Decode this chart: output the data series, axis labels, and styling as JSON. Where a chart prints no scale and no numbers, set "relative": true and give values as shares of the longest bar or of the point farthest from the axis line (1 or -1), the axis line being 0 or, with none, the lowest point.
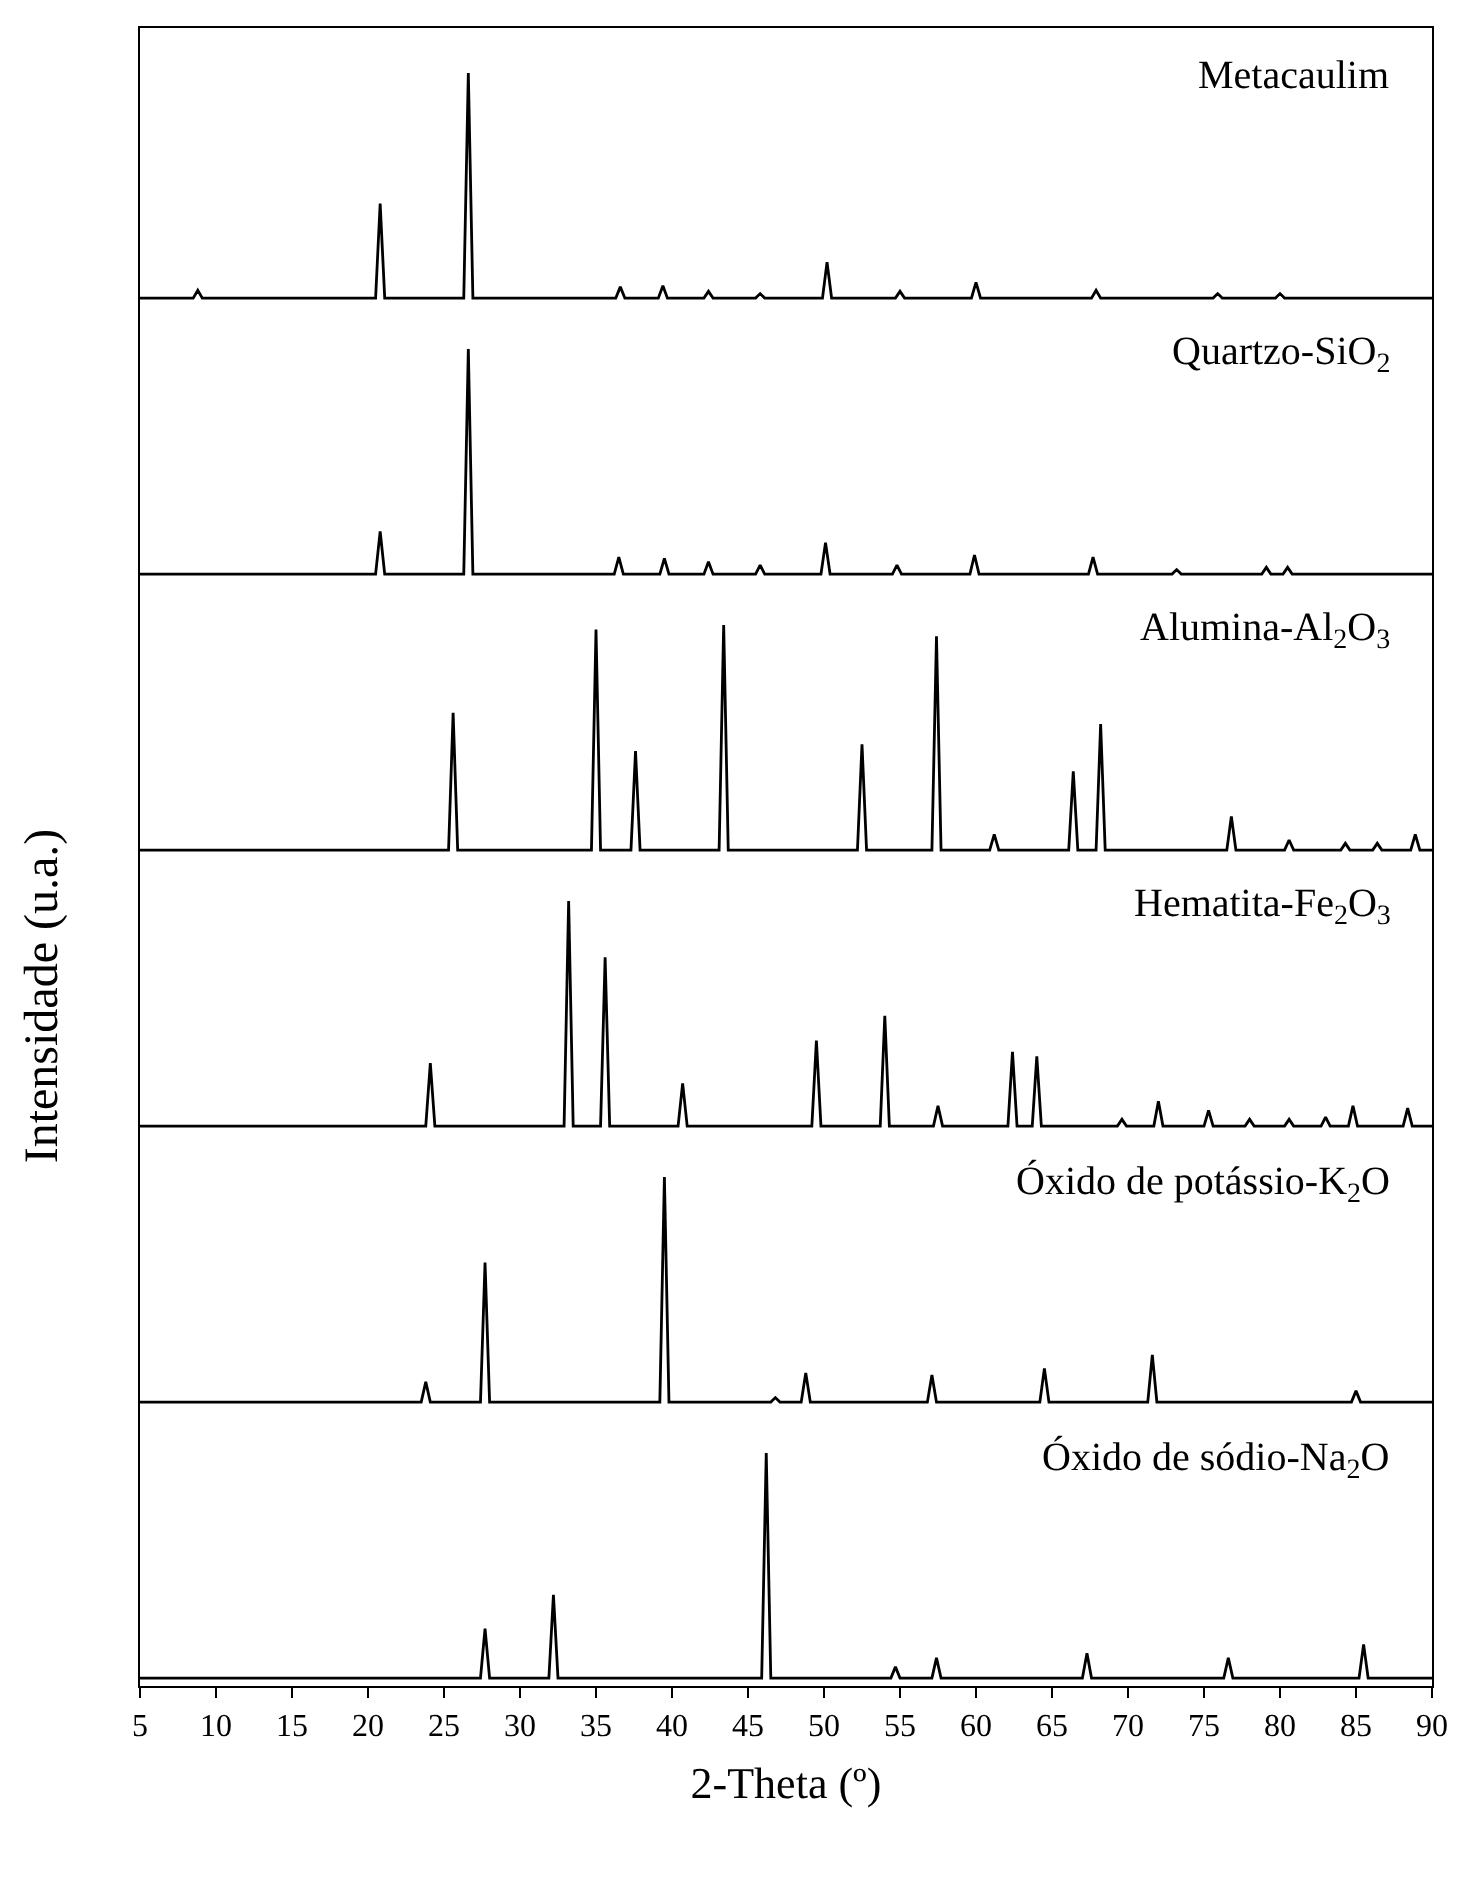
{
  "chart_data": [
    {
      "type": "line",
      "title": "Metacaulim",
      "relative": true,
      "xlim": [
        5,
        90
      ],
      "tick_labels": false,
      "series": [
        {
          "color": "#000000",
          "x": [
            5,
            8.5,
            8.8,
            9.1,
            20.5,
            20.8,
            21.1,
            26.3,
            26.6,
            26.9,
            36.3,
            36.6,
            36.9,
            39.1,
            39.4,
            39.7,
            42.1,
            42.4,
            42.7,
            45.5,
            45.8,
            46.1,
            49.9,
            50.2,
            50.5,
            54.7,
            55.0,
            55.3,
            59.7,
            60.0,
            60.3,
            67.6,
            67.9,
            68.2,
            75.6,
            75.9,
            76.2,
            79.7,
            80.0,
            80.3,
            90
          ],
          "values": [
            0,
            0,
            0.035,
            0,
            0,
            0.42,
            0,
            0,
            1,
            0,
            0,
            0.05,
            0,
            0,
            0.055,
            0,
            0,
            0.03,
            0,
            0,
            0.02,
            0,
            0,
            0.16,
            0,
            0,
            0.03,
            0,
            0,
            0.07,
            0,
            0,
            0.035,
            0,
            0,
            0.02,
            0,
            0,
            0.02,
            0,
            0
          ]
        }
      ]
    },
    {
      "type": "line",
      "title": "Quartzo-SiO$_{2}$",
      "relative": true,
      "xlim": [
        5,
        90
      ],
      "tick_labels": false,
      "series": [
        {
          "color": "#000000",
          "x": [
            5,
            20.5,
            20.8,
            21.1,
            26.3,
            26.6,
            26.9,
            36.2,
            36.5,
            36.8,
            39.2,
            39.5,
            39.8,
            42.1,
            42.4,
            42.7,
            45.5,
            45.8,
            46.1,
            49.8,
            50.1,
            50.4,
            54.5,
            54.8,
            55.1,
            59.6,
            59.9,
            60.2,
            67.4,
            67.7,
            68.0,
            72.9,
            73.2,
            73.5,
            78.8,
            79.1,
            79.4,
            80.2,
            80.5,
            80.8,
            90
          ],
          "values": [
            0,
            0,
            0.19,
            0,
            0,
            1,
            0,
            0,
            0.075,
            0,
            0,
            0.07,
            0,
            0,
            0.055,
            0,
            0,
            0.04,
            0,
            0,
            0.14,
            0,
            0,
            0.04,
            0,
            0,
            0.085,
            0,
            0,
            0.075,
            0,
            0,
            0.02,
            0,
            0,
            0.03,
            0,
            0,
            0.03,
            0,
            0
          ]
        }
      ]
    },
    {
      "type": "line",
      "title": "Alumina-Al$_{2}$O$_{3}$",
      "relative": true,
      "xlim": [
        5,
        90
      ],
      "tick_labels": false,
      "series": [
        {
          "color": "#000000",
          "x": [
            5,
            25.3,
            25.6,
            25.9,
            34.7,
            35.0,
            35.3,
            37.3,
            37.6,
            37.9,
            43.1,
            43.4,
            43.7,
            52.2,
            52.5,
            52.8,
            57.1,
            57.4,
            57.7,
            60.9,
            61.2,
            61.5,
            66.1,
            66.4,
            66.7,
            67.9,
            68.2,
            68.5,
            76.5,
            76.8,
            77.1,
            80.3,
            80.6,
            80.9,
            84.0,
            84.3,
            84.6,
            86.1,
            86.4,
            86.7,
            88.6,
            88.9,
            89.2,
            90
          ],
          "values": [
            0,
            0,
            0.61,
            0,
            0,
            0.98,
            0,
            0,
            0.44,
            0,
            0,
            1,
            0,
            0,
            0.47,
            0,
            0,
            0.95,
            0,
            0,
            0.07,
            0,
            0,
            0.35,
            0,
            0,
            0.56,
            0,
            0,
            0.15,
            0,
            0,
            0.045,
            0,
            0,
            0.03,
            0,
            0,
            0.03,
            0,
            0,
            0.07,
            0,
            0
          ]
        }
      ]
    },
    {
      "type": "line",
      "title": "Hematita-Fe$_{2}$O$_{3}$",
      "ylabel": "Intensidade (u.a.)",
      "relative": true,
      "xlim": [
        5,
        90
      ],
      "tick_labels": false,
      "series": [
        {
          "color": "#000000",
          "x": [
            5,
            23.8,
            24.1,
            24.4,
            32.9,
            33.2,
            33.5,
            35.3,
            35.6,
            35.9,
            40.4,
            40.7,
            41.0,
            49.2,
            49.5,
            49.8,
            53.7,
            54.0,
            54.3,
            57.2,
            57.5,
            57.8,
            62.1,
            62.4,
            62.7,
            63.7,
            64.0,
            64.3,
            69.3,
            69.6,
            69.9,
            71.7,
            72.0,
            72.3,
            75.0,
            75.3,
            75.6,
            77.7,
            78.0,
            78.3,
            80.3,
            80.6,
            80.9,
            82.7,
            83.0,
            83.3,
            84.5,
            84.8,
            85.1,
            88.1,
            88.4,
            88.7,
            90
          ],
          "values": [
            0,
            0,
            0.28,
            0,
            0,
            1,
            0,
            0,
            0.75,
            0,
            0,
            0.19,
            0,
            0,
            0.38,
            0,
            0,
            0.49,
            0,
            0,
            0.09,
            0,
            0,
            0.33,
            0,
            0,
            0.31,
            0,
            0,
            0.03,
            0,
            0,
            0.11,
            0,
            0,
            0.07,
            0,
            0,
            0.03,
            0,
            0,
            0.03,
            0,
            0,
            0.04,
            0,
            0,
            0.09,
            0,
            0,
            0.08,
            0,
            0
          ]
        }
      ]
    },
    {
      "type": "line",
      "title": "Óxido de potássio-K$_{2}$O",
      "relative": true,
      "xlim": [
        5,
        90
      ],
      "tick_labels": false,
      "series": [
        {
          "color": "#000000",
          "x": [
            5,
            23.5,
            23.8,
            24.1,
            27.4,
            27.7,
            28.0,
            39.2,
            39.5,
            39.8,
            46.5,
            46.8,
            47.1,
            48.5,
            48.8,
            49.1,
            56.8,
            57.1,
            57.4,
            64.2,
            64.5,
            64.8,
            71.3,
            71.6,
            71.9,
            84.7,
            85.0,
            85.3,
            90
          ],
          "values": [
            0,
            0,
            0.09,
            0,
            0,
            0.62,
            0,
            0,
            1,
            0,
            0,
            0.02,
            0,
            0,
            0.13,
            0,
            0,
            0.12,
            0,
            0,
            0.15,
            0,
            0,
            0.21,
            0,
            0,
            0.05,
            0,
            0
          ]
        }
      ]
    },
    {
      "type": "line",
      "title": "Óxido de sódio-Na$_{2}$O",
      "xlabel": "2-Theta (º)",
      "relative": true,
      "xlim": [
        5,
        90
      ],
      "xticks": [
        5,
        10,
        15,
        20,
        25,
        30,
        35,
        40,
        45,
        50,
        55,
        60,
        65,
        70,
        75,
        80,
        85,
        90
      ],
      "tick_labels": "x",
      "series": [
        {
          "color": "#000000",
          "x": [
            5,
            27.4,
            27.7,
            28.0,
            31.9,
            32.2,
            32.5,
            45.9,
            46.2,
            46.5,
            54.4,
            54.7,
            55.0,
            57.1,
            57.4,
            57.7,
            67.0,
            67.3,
            67.6,
            76.3,
            76.6,
            76.9,
            85.2,
            85.5,
            85.8,
            90
          ],
          "values": [
            0,
            0,
            0.22,
            0,
            0,
            0.37,
            0,
            0,
            1,
            0,
            0,
            0.05,
            0,
            0,
            0.09,
            0,
            0,
            0.11,
            0,
            0,
            0.09,
            0,
            0,
            0.15,
            0,
            0
          ]
        }
      ]
    }
  ]
}
